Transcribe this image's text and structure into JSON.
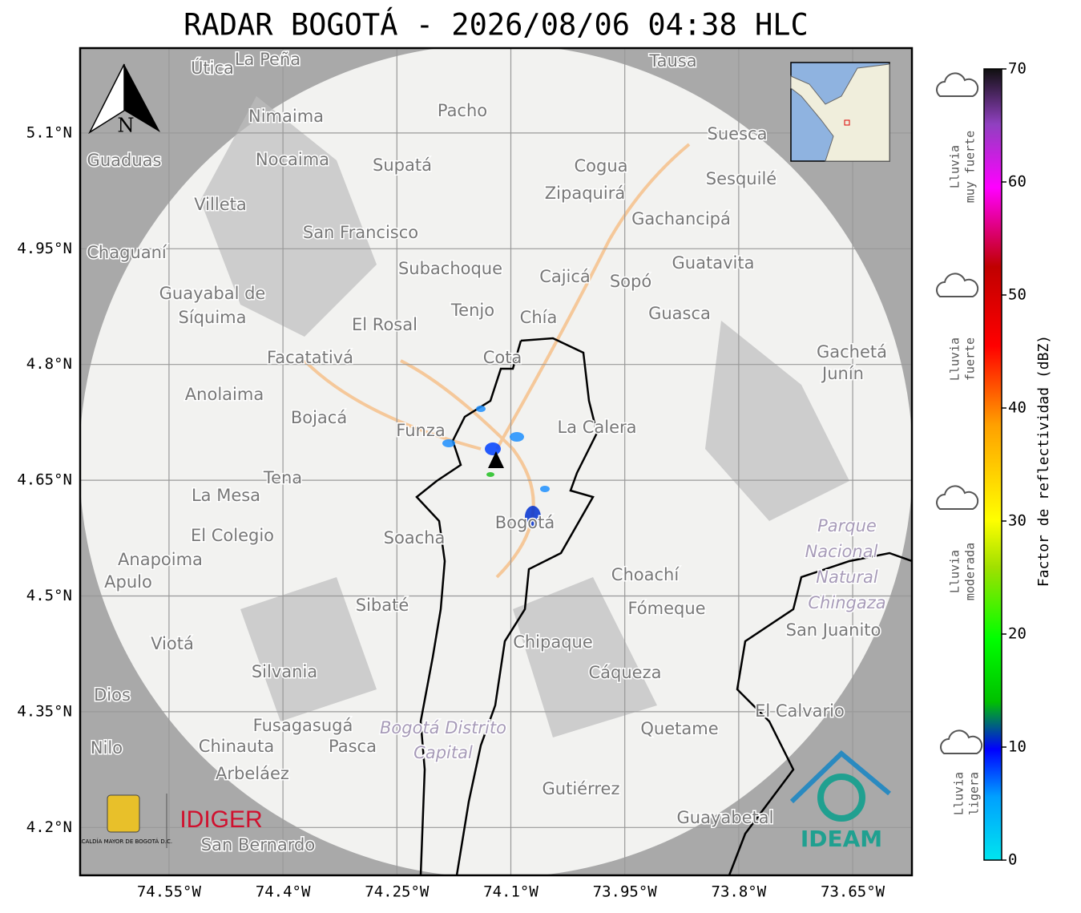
{
  "title": "RADAR BOGOTÁ - 2026/08/06 04:38 HLC",
  "map": {
    "xlim": [
      -74.667,
      -73.572
    ],
    "ylim": [
      4.138,
      5.21
    ],
    "xticks": [
      {
        "value": -74.55,
        "label": "74.55°W"
      },
      {
        "value": -74.4,
        "label": "74.4°W"
      },
      {
        "value": -74.25,
        "label": "74.25°W"
      },
      {
        "value": -74.1,
        "label": "74.1°W"
      },
      {
        "value": -73.95,
        "label": "73.95°W"
      },
      {
        "value": -73.8,
        "label": "73.8°W"
      },
      {
        "value": -73.65,
        "label": "73.65°W"
      }
    ],
    "yticks": [
      {
        "value": 4.2,
        "label": "4.2°N"
      },
      {
        "value": 4.35,
        "label": "4.35°N"
      },
      {
        "value": 4.5,
        "label": "4.5°N"
      },
      {
        "value": 4.65,
        "label": "4.65°N"
      },
      {
        "value": 4.8,
        "label": "4.8°N"
      },
      {
        "value": 4.95,
        "label": "4.95°N"
      },
      {
        "value": 5.1,
        "label": "5.1°N"
      }
    ],
    "north": "N",
    "places": [
      "La Peña",
      "Útica",
      "Tausa",
      "Pacho",
      "Nimaima",
      "Suesca",
      "Guaduas",
      "Nocaima",
      "Supatá",
      "Cogua",
      "Sesquilé",
      "Zipaquirá",
      "Villeta",
      "Gachancipá",
      "San Francisco",
      "Chaguaní",
      "Guatavita",
      "Subachoque",
      "Cajicá",
      "Sopó",
      "Guayabal de",
      "Síquima",
      "Tenjo",
      "Chía",
      "Guasca",
      "El Rosal",
      "Facatativá",
      "Cota",
      "Gachetá",
      "Junín",
      "Anolaima",
      "Bojacá",
      "Funza",
      "La Calera",
      "Tena",
      "La Mesa",
      "Bogotá",
      "Soacha",
      "El Colegio",
      "Anapoima",
      "Apulo",
      "Choachí",
      "Sibaté",
      "Fómeque",
      "San Juanito",
      "Viotá",
      "Chipaque",
      "Silvania",
      "Cáqueza",
      "Dios",
      "El Calvario",
      "Fusagasugá",
      "Quetame",
      "Nilo",
      "Chinauta",
      "Pasca",
      "Arbeláez",
      "Gutiérrez",
      "Guayabetal",
      "San Bernardo"
    ],
    "parks": [
      "Parque",
      "Nacional",
      "Natural",
      "Chingaza",
      "Bogotá Distrito",
      "Capital"
    ]
  },
  "colorbar": {
    "label": "Factor de reflectividad (dBZ)",
    "lim": [
      0,
      70
    ],
    "ticks": [
      0,
      10,
      20,
      30,
      40,
      50,
      60,
      70
    ]
  },
  "legend": [
    [
      "Lluvia",
      "muy fuerte"
    ],
    [
      "Lluvia",
      "fuerte"
    ],
    [
      "Lluvia",
      "moderada"
    ],
    [
      "Lluvia",
      "ligera"
    ]
  ],
  "logos": {
    "alcaldia": "ALCALDÍA MAYOR DE BOGOTÁ D.C.",
    "idiger": "IDIGER",
    "ideam": "IDEAM"
  }
}
